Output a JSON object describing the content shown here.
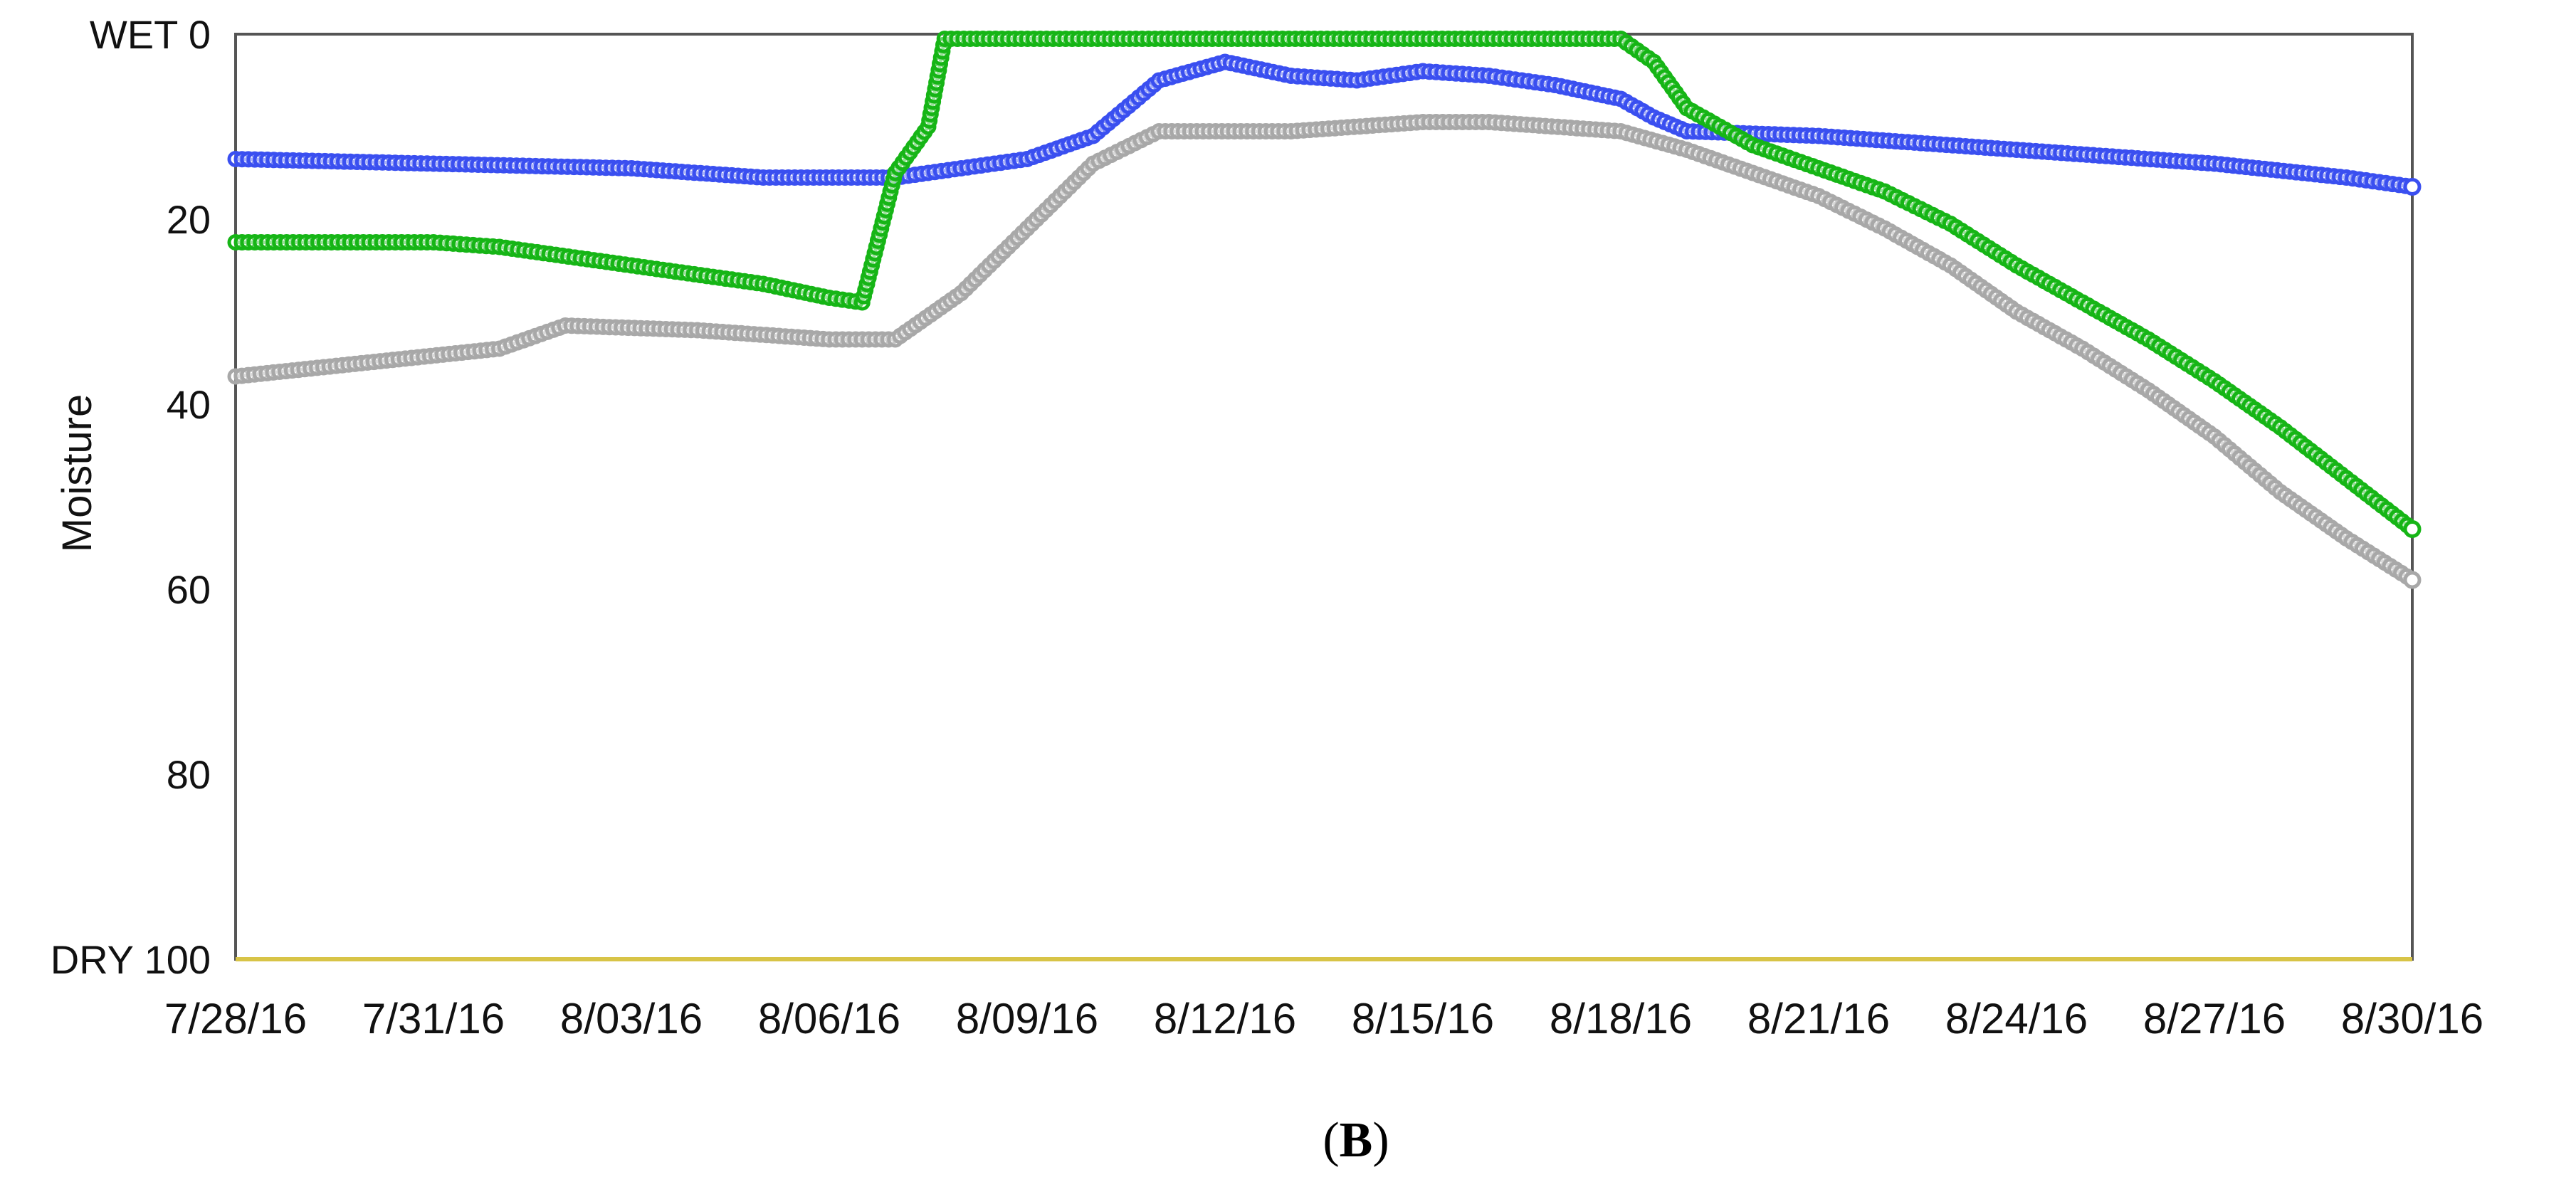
{
  "chart_data": {
    "type": "line",
    "ylabel": "Moisture",
    "panel_label": {
      "open": "(",
      "letter": "B",
      "close": ")"
    },
    "y_inverted": true,
    "ylim": [
      0,
      100
    ],
    "y_ticks": [
      {
        "value": 0,
        "label": "WET 0"
      },
      {
        "value": 20,
        "label": "20"
      },
      {
        "value": 40,
        "label": "40"
      },
      {
        "value": 60,
        "label": "60"
      },
      {
        "value": 80,
        "label": "80"
      },
      {
        "value": 100,
        "label": "DRY 100"
      }
    ],
    "xlim": [
      "2016-07-28",
      "2016-08-30"
    ],
    "x_ticks": [
      {
        "value": "2016-07-28",
        "label": "7/28/16"
      },
      {
        "value": "2016-07-31",
        "label": "7/31/16"
      },
      {
        "value": "2016-08-03",
        "label": "8/03/16"
      },
      {
        "value": "2016-08-06",
        "label": "8/06/16"
      },
      {
        "value": "2016-08-09",
        "label": "8/09/16"
      },
      {
        "value": "2016-08-12",
        "label": "8/12/16"
      },
      {
        "value": "2016-08-15",
        "label": "8/15/16"
      },
      {
        "value": "2016-08-18",
        "label": "8/18/16"
      },
      {
        "value": "2016-08-21",
        "label": "8/21/16"
      },
      {
        "value": "2016-08-24",
        "label": "8/24/16"
      },
      {
        "value": "2016-08-27",
        "label": "8/27/16"
      },
      {
        "value": "2016-08-30",
        "label": "8/30/16"
      }
    ],
    "grid": false,
    "legend": "none",
    "marker": "open-circle",
    "series": [
      {
        "color": "#3a4ff0",
        "points": [
          [
            "2016-07-28",
            13.5
          ],
          [
            "2016-07-31",
            14
          ],
          [
            "2016-08-03",
            14.5
          ],
          [
            "2016-08-05",
            15.5
          ],
          [
            "2016-08-07",
            15.5
          ],
          [
            "2016-08-08",
            14.5
          ],
          [
            "2016-08-09",
            13.5
          ],
          [
            "2016-08-10",
            11
          ],
          [
            "2016-08-11",
            5
          ],
          [
            "2016-08-12",
            3
          ],
          [
            "2016-08-13",
            4.5
          ],
          [
            "2016-08-14",
            5
          ],
          [
            "2016-08-15",
            4
          ],
          [
            "2016-08-16",
            4.5
          ],
          [
            "2016-08-17",
            5.5
          ],
          [
            "2016-08-18",
            7
          ],
          [
            "2016-08-18T12:00",
            9
          ],
          [
            "2016-08-19",
            10.5
          ],
          [
            "2016-08-21",
            11
          ],
          [
            "2016-08-24",
            12.5
          ],
          [
            "2016-08-27",
            14
          ],
          [
            "2016-08-29",
            15.5
          ],
          [
            "2016-08-30",
            16.5
          ]
        ]
      },
      {
        "color": "#16b516",
        "points": [
          [
            "2016-07-28",
            22.5
          ],
          [
            "2016-07-31",
            22.5
          ],
          [
            "2016-08-01",
            23
          ],
          [
            "2016-08-03",
            25
          ],
          [
            "2016-08-05",
            27
          ],
          [
            "2016-08-06",
            28.5
          ],
          [
            "2016-08-06T12:00",
            29
          ],
          [
            "2016-08-07",
            15
          ],
          [
            "2016-08-07T12:00",
            10
          ],
          [
            "2016-08-07T18:00",
            0.5
          ],
          [
            "2016-08-12",
            0.5
          ],
          [
            "2016-08-15",
            0.5
          ],
          [
            "2016-08-18",
            0.5
          ],
          [
            "2016-08-18T12:00",
            3
          ],
          [
            "2016-08-19",
            8
          ],
          [
            "2016-08-20",
            12
          ],
          [
            "2016-08-21",
            14.5
          ],
          [
            "2016-08-22",
            17
          ],
          [
            "2016-08-23",
            20.5
          ],
          [
            "2016-08-24",
            25
          ],
          [
            "2016-08-25",
            29
          ],
          [
            "2016-08-26",
            33
          ],
          [
            "2016-08-27",
            37.5
          ],
          [
            "2016-08-28",
            42.5
          ],
          [
            "2016-08-29",
            48
          ],
          [
            "2016-08-30",
            53.5
          ]
        ]
      },
      {
        "color": "#a8a8a8",
        "points": [
          [
            "2016-07-28",
            37
          ],
          [
            "2016-07-30",
            35.5
          ],
          [
            "2016-08-01",
            34
          ],
          [
            "2016-08-02",
            31.5
          ],
          [
            "2016-08-04",
            32
          ],
          [
            "2016-08-06",
            33
          ],
          [
            "2016-08-07",
            33
          ],
          [
            "2016-08-08",
            28
          ],
          [
            "2016-08-09",
            21
          ],
          [
            "2016-08-10",
            14
          ],
          [
            "2016-08-11",
            10.5
          ],
          [
            "2016-08-13",
            10.5
          ],
          [
            "2016-08-15",
            9.5
          ],
          [
            "2016-08-16",
            9.5
          ],
          [
            "2016-08-18",
            10.5
          ],
          [
            "2016-08-19",
            12.5
          ],
          [
            "2016-08-21",
            17.5
          ],
          [
            "2016-08-22",
            21
          ],
          [
            "2016-08-23",
            25
          ],
          [
            "2016-08-24",
            30
          ],
          [
            "2016-08-25",
            34
          ],
          [
            "2016-08-26",
            38.5
          ],
          [
            "2016-08-27",
            43.5
          ],
          [
            "2016-08-28",
            49.5
          ],
          [
            "2016-08-29",
            54.5
          ],
          [
            "2016-08-30",
            59
          ]
        ]
      }
    ]
  }
}
